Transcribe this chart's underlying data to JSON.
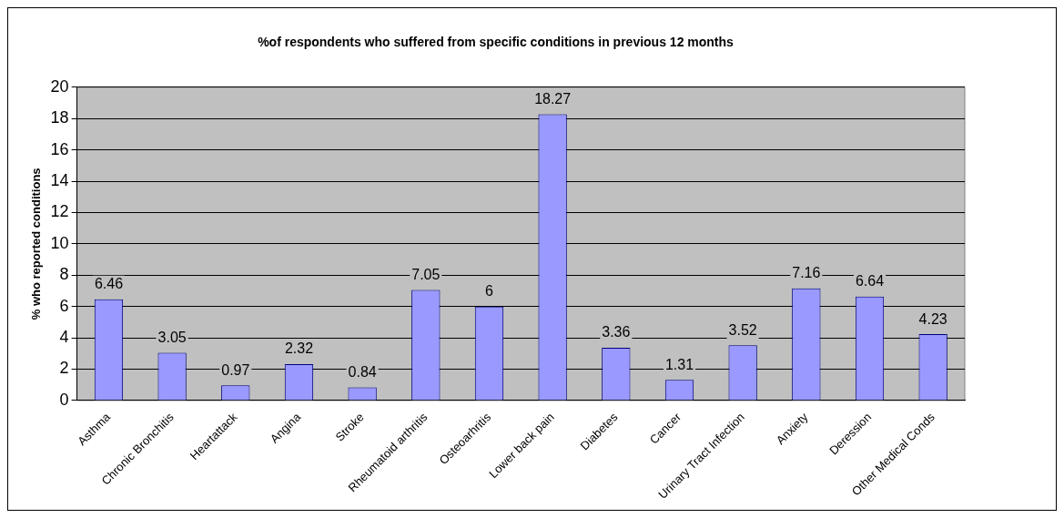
{
  "chart_data": {
    "type": "bar",
    "title": "%of respondents who suffered from specific conditions in previous 12 months",
    "ylabel": "% who reported conditions",
    "categories": [
      "Asthma",
      "Chronic Bronchitis",
      "Heartattack",
      "Angina",
      "Stroke",
      "Rheumatoid arthritis",
      "Osteoarhritis",
      "Lower back pain",
      "Diabetes",
      "Cancer",
      "Urinary Tract Infection",
      "Anxiety",
      "Deression",
      "Other Medical Conds"
    ],
    "values": [
      6.46,
      3.05,
      0.97,
      2.32,
      0.84,
      7.05,
      6,
      18.27,
      3.36,
      1.31,
      3.52,
      7.16,
      6.64,
      4.23
    ],
    "color": "#9999ff",
    "ylim": [
      0,
      20
    ],
    "yticks": [
      0,
      2,
      4,
      6,
      8,
      10,
      12,
      14,
      16,
      18,
      20
    ],
    "grid": "y",
    "data_labels": true,
    "legend": false
  }
}
